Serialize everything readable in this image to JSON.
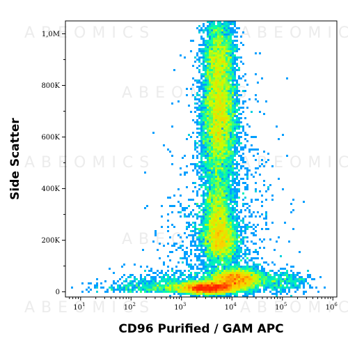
{
  "chart_data": {
    "type": "scatter",
    "subtype": "flow-cytometry density dot plot",
    "xlabel": "CD96 Purified / GAM APC",
    "ylabel": "Side Scatter",
    "x_scale": "log",
    "xlim": [
      5,
      1200000
    ],
    "ylim": [
      -20000,
      1050000
    ],
    "x_ticks": [
      {
        "value": 10,
        "base": "10",
        "exp": "1"
      },
      {
        "value": 100,
        "base": "10",
        "exp": "2"
      },
      {
        "value": 1000,
        "base": "10",
        "exp": "3"
      },
      {
        "value": 10000,
        "base": "10",
        "exp": "4"
      },
      {
        "value": 100000,
        "base": "10",
        "exp": "5"
      },
      {
        "value": 1000000,
        "base": "10",
        "exp": "6"
      }
    ],
    "y_ticks": [
      {
        "value": 0,
        "label": "0"
      },
      {
        "value": 200000,
        "label": "200K"
      },
      {
        "value": 400000,
        "label": "400K"
      },
      {
        "value": 600000,
        "label": "600K"
      },
      {
        "value": 800000,
        "label": "800K"
      },
      {
        "value": 1000000,
        "label": "1,0M"
      }
    ],
    "populations": [
      {
        "name": "",
        "x_center": 3500,
        "y_center": 15000,
        "spread_log_x": 0.28,
        "spread_y": 12000,
        "density": "highest"
      },
      {
        "name": "",
        "x_center": 12000,
        "y_center": 50000,
        "spread_log_x": 0.25,
        "spread_y": 20000,
        "density": "high"
      },
      {
        "name": "",
        "x_center": 6000,
        "y_center": 200000,
        "spread_log_x": 0.18,
        "spread_y": 45000,
        "density": "medium"
      },
      {
        "name": "",
        "x_center": 5500,
        "y_center": 680000,
        "spread_log_x": 0.17,
        "spread_y": 150000,
        "density": "medium"
      }
    ],
    "color_scale": [
      "#0000ff",
      "#00b4ff",
      "#00ffaa",
      "#c8ff00",
      "#ffcc00",
      "#ff2200"
    ],
    "grid": false,
    "legend": "none",
    "watermark_text": "ABEOMICS"
  }
}
